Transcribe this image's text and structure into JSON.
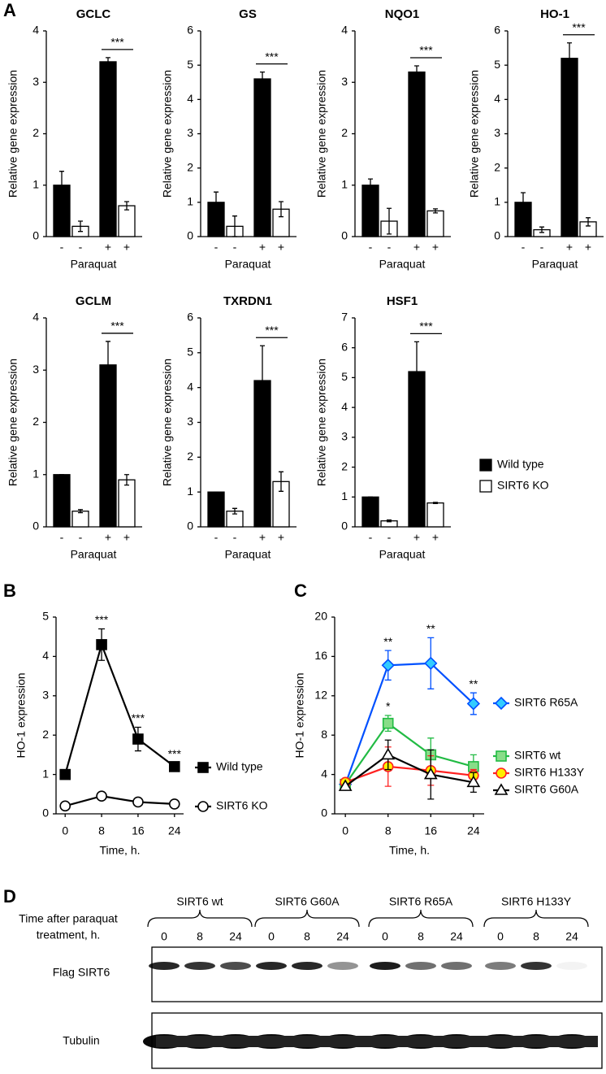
{
  "panel_labels": [
    "A",
    "B",
    "C",
    "D"
  ],
  "legend": [
    {
      "name": "Wild type",
      "color": "#000000"
    },
    {
      "name": "SIRT6 KO",
      "color": "#ffffff"
    }
  ],
  "chart_data": [
    {
      "type": "bar",
      "title": "GCLC",
      "ylabel": "Relative gene expression",
      "xlabel": "Paraquat",
      "categories": [
        "-",
        "-",
        "+",
        "+"
      ],
      "values": [
        1.0,
        0.2,
        3.4,
        0.6
      ],
      "errors": [
        0.27,
        0.1,
        0.08,
        0.08
      ],
      "colors": [
        "#000000",
        "#ffffff",
        "#000000",
        "#ffffff"
      ],
      "ylim": [
        0,
        4
      ],
      "yticks": [
        0,
        1,
        2,
        3,
        4
      ],
      "annotation": "***"
    },
    {
      "type": "bar",
      "title": "GS",
      "ylabel": "Relative gene expression",
      "xlabel": "Paraquat",
      "categories": [
        "-",
        "-",
        "+",
        "+"
      ],
      "values": [
        1.0,
        0.3,
        4.6,
        0.8
      ],
      "errors": [
        0.3,
        0.3,
        0.2,
        0.22
      ],
      "colors": [
        "#000000",
        "#ffffff",
        "#000000",
        "#ffffff"
      ],
      "ylim": [
        0,
        6
      ],
      "yticks": [
        0,
        1,
        2,
        3,
        4,
        5,
        6
      ],
      "annotation": "***"
    },
    {
      "type": "bar",
      "title": "NQO1",
      "ylabel": "Relative gene expression",
      "xlabel": "Paraquat",
      "categories": [
        "-",
        "-",
        "+",
        "+"
      ],
      "values": [
        1.0,
        0.3,
        3.2,
        0.5
      ],
      "errors": [
        0.12,
        0.25,
        0.12,
        0.04
      ],
      "colors": [
        "#000000",
        "#ffffff",
        "#000000",
        "#ffffff"
      ],
      "ylim": [
        0,
        4
      ],
      "yticks": [
        0,
        1,
        2,
        3,
        4
      ],
      "annotation": "***"
    },
    {
      "type": "bar",
      "title": "HO-1",
      "ylabel": "Relative gene expression",
      "xlabel": "Paraquat",
      "categories": [
        "-",
        "-",
        "+",
        "+"
      ],
      "values": [
        1.0,
        0.2,
        5.2,
        0.43
      ],
      "errors": [
        0.28,
        0.08,
        0.45,
        0.12
      ],
      "colors": [
        "#000000",
        "#ffffff",
        "#000000",
        "#ffffff"
      ],
      "ylim": [
        0,
        6
      ],
      "yticks": [
        0,
        1,
        2,
        3,
        4,
        5,
        6
      ],
      "annotation": "***"
    },
    {
      "type": "bar",
      "title": "GCLM",
      "ylabel": "Relative gene expression",
      "xlabel": "Paraquat",
      "categories": [
        "-",
        "-",
        "+",
        "+"
      ],
      "values": [
        1.0,
        0.3,
        3.1,
        0.9
      ],
      "errors": [
        0,
        0.03,
        0.45,
        0.1
      ],
      "colors": [
        "#000000",
        "#ffffff",
        "#000000",
        "#ffffff"
      ],
      "ylim": [
        0,
        4
      ],
      "yticks": [
        0,
        1,
        2,
        3,
        4
      ],
      "annotation": "***"
    },
    {
      "type": "bar",
      "title": "TXRDN1",
      "ylabel": "Relative gene expression",
      "xlabel": "Paraquat",
      "categories": [
        "-",
        "-",
        "+",
        "+"
      ],
      "values": [
        1.0,
        0.45,
        4.2,
        1.3
      ],
      "errors": [
        0,
        0.08,
        1.0,
        0.28
      ],
      "colors": [
        "#000000",
        "#ffffff",
        "#000000",
        "#ffffff"
      ],
      "ylim": [
        0,
        6
      ],
      "yticks": [
        0,
        1,
        2,
        3,
        4,
        5,
        6
      ],
      "annotation": "***"
    },
    {
      "type": "bar",
      "title": "HSF1",
      "ylabel": "Relative gene expression",
      "xlabel": "Paraquat",
      "categories": [
        "-",
        "-",
        "+",
        "+"
      ],
      "values": [
        1.0,
        0.2,
        5.2,
        0.8
      ],
      "errors": [
        0,
        0.03,
        1.0,
        0.02
      ],
      "colors": [
        "#000000",
        "#ffffff",
        "#000000",
        "#ffffff"
      ],
      "ylim": [
        0,
        7
      ],
      "yticks": [
        0,
        1,
        2,
        3,
        4,
        5,
        6,
        7
      ],
      "annotation": "***"
    },
    {
      "type": "line",
      "ylabel": "HO-1 expression",
      "xlabel": "Time, h.",
      "x": [
        0,
        8,
        16,
        24
      ],
      "xlim": [
        -2,
        26
      ],
      "xticks": [
        0,
        8,
        16,
        24
      ],
      "ylim": [
        0,
        5
      ],
      "yticks": [
        0,
        1,
        2,
        3,
        4,
        5
      ],
      "series": [
        {
          "name": "Wild type",
          "color": "#000000",
          "fill": "#000000",
          "marker": "square",
          "values": [
            1.0,
            4.3,
            1.9,
            1.2
          ],
          "errors": [
            0,
            0.4,
            0.3,
            0.1
          ],
          "annotations": [
            null,
            "***",
            "***",
            "***"
          ]
        },
        {
          "name": "SIRT6 KO",
          "color": "#000000",
          "fill": "#ffffff",
          "marker": "circle",
          "values": [
            0.2,
            0.45,
            0.3,
            0.25
          ],
          "errors": [
            0,
            0.03,
            0.03,
            0.03
          ],
          "annotations": [
            null,
            null,
            null,
            null
          ]
        }
      ]
    },
    {
      "type": "line",
      "ylabel": "HO-1 expression",
      "xlabel": "Time, h.",
      "x": [
        0,
        8,
        16,
        24
      ],
      "xlim": [
        -2,
        26
      ],
      "xticks": [
        0,
        8,
        16,
        24
      ],
      "ylim": [
        0,
        20
      ],
      "yticks": [
        0,
        4,
        8,
        12,
        16,
        20
      ],
      "series": [
        {
          "name": "SIRT6 R65A",
          "color": "#0050ff",
          "fill": "#33ccff",
          "marker": "diamond",
          "values": [
            3.0,
            15.1,
            15.3,
            11.2
          ],
          "errors": [
            0,
            1.5,
            2.6,
            1.1
          ],
          "annotations": [
            null,
            "**",
            "**",
            "**"
          ]
        },
        {
          "name": "SIRT6 wt",
          "color": "#22bb44",
          "fill": "#88dd88",
          "marker": "square",
          "values": [
            3.0,
            9.2,
            6.0,
            4.8
          ],
          "errors": [
            0,
            0.8,
            1.7,
            1.2
          ],
          "annotations": [
            null,
            "*",
            null,
            null
          ]
        },
        {
          "name": "SIRT6 H133Y",
          "color": "#ff2020",
          "fill": "#ffee00",
          "marker": "circle",
          "values": [
            3.2,
            4.8,
            4.4,
            3.9
          ],
          "errors": [
            0,
            2.0,
            1.5,
            0.6
          ],
          "annotations": [
            null,
            null,
            null,
            null
          ]
        },
        {
          "name": "SIRT6 G60A",
          "color": "#000000",
          "fill": "#ffffff",
          "marker": "triangle",
          "values": [
            2.8,
            6.0,
            4.0,
            3.2
          ],
          "errors": [
            0,
            1.5,
            2.5,
            1.0
          ],
          "annotations": [
            null,
            null,
            null,
            null
          ]
        }
      ]
    }
  ],
  "blot": {
    "header_lines": [
      "Time after paraquat",
      "treatment, h."
    ],
    "groups": [
      {
        "name": "SIRT6 wt",
        "times": [
          0,
          8,
          24
        ]
      },
      {
        "name": "SIRT6 G60A",
        "times": [
          0,
          8,
          24
        ]
      },
      {
        "name": "SIRT6 R65A",
        "times": [
          0,
          8,
          24
        ]
      },
      {
        "name": "SIRT6 H133Y",
        "times": [
          0,
          8,
          24
        ]
      }
    ],
    "rows": [
      "Flag SIRT6",
      "Tubulin"
    ]
  }
}
